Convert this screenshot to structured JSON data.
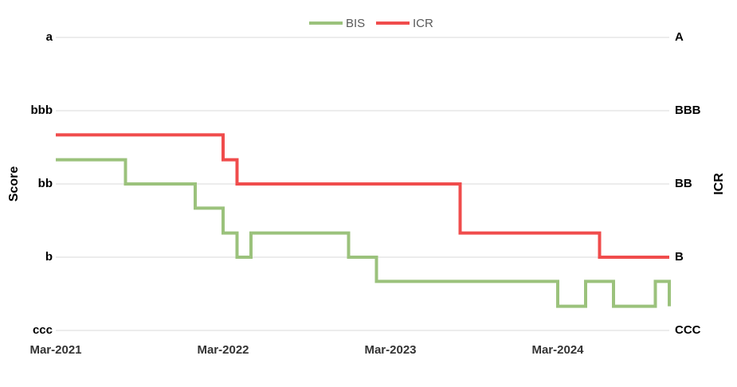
{
  "chart_data": {
    "type": "line",
    "ylabel": "Score",
    "y2label": "ICR",
    "left_ticks": [
      "ccc",
      "b",
      "bb",
      "bbb",
      "a"
    ],
    "right_ticks": [
      "CCC",
      "B",
      "BB",
      "BBB",
      "A"
    ],
    "x_ticks": [
      "Mar-2021",
      "Mar-2022",
      "Mar-2023",
      "Mar-2024"
    ],
    "x_range": [
      "2021-03",
      "2024-11"
    ],
    "y_range": [
      0,
      4
    ],
    "grid": true,
    "legend": "top",
    "series": [
      {
        "name": "BIS",
        "color": "#9bc27c",
        "x": [
          "2021-03",
          "2021-04",
          "2021-05",
          "2021-06",
          "2021-07",
          "2021-08",
          "2021-09",
          "2021-10",
          "2021-11",
          "2021-12",
          "2022-01",
          "2022-02",
          "2022-03",
          "2022-04",
          "2022-05",
          "2022-06",
          "2022-07",
          "2022-08",
          "2022-09",
          "2022-10",
          "2022-11",
          "2022-12",
          "2023-01",
          "2023-02",
          "2023-03",
          "2023-04",
          "2023-05",
          "2023-06",
          "2023-07",
          "2023-08",
          "2023-09",
          "2023-10",
          "2023-11",
          "2023-12",
          "2024-01",
          "2024-02",
          "2024-03",
          "2024-04",
          "2024-05",
          "2024-06",
          "2024-07",
          "2024-08",
          "2024-09",
          "2024-10",
          "2024-11"
        ],
        "values": [
          2.33,
          2.33,
          2.33,
          2.33,
          2.33,
          2.0,
          2.0,
          2.0,
          2.0,
          2.0,
          1.67,
          1.67,
          1.33,
          1.0,
          1.33,
          1.33,
          1.33,
          1.33,
          1.33,
          1.33,
          1.33,
          1.0,
          1.0,
          0.67,
          0.67,
          0.67,
          0.67,
          0.67,
          0.67,
          0.67,
          0.67,
          0.67,
          0.67,
          0.67,
          0.67,
          0.67,
          0.33,
          0.33,
          0.67,
          0.67,
          0.33,
          0.33,
          0.33,
          0.67,
          0.33
        ]
      },
      {
        "name": "ICR",
        "color": "#f04c4c",
        "x": [
          "2021-03",
          "2022-02",
          "2022-03",
          "2022-04",
          "2023-07",
          "2023-08",
          "2024-05",
          "2024-06",
          "2024-11"
        ],
        "values": [
          2.67,
          2.67,
          2.33,
          2.0,
          2.0,
          1.33,
          1.33,
          1.0,
          1.0
        ]
      }
    ]
  }
}
